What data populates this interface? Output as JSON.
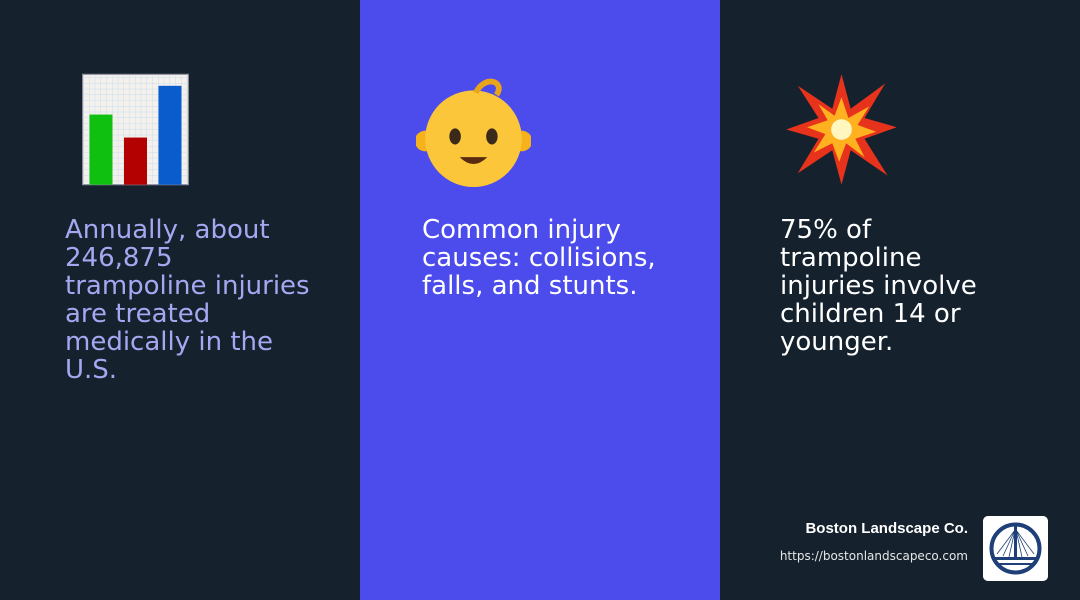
{
  "stats": [
    {
      "icon": "bar-chart-icon",
      "text": "Annually, about 246,875 trampoline injuries are treated medically in the U.S."
    },
    {
      "icon": "baby-icon",
      "text": "Common injury causes: collisions, falls, and stunts."
    },
    {
      "icon": "collision-icon",
      "text": "75% of trampoline injuries involve children 14 or younger."
    }
  ],
  "brand": {
    "name": "Boston Landscape Co.",
    "url": "https://bostonlandscapeco.com"
  },
  "colors": {
    "dark": "#15222e",
    "accent": "#4c4bec",
    "lavender_text": "#a5a8f1"
  }
}
